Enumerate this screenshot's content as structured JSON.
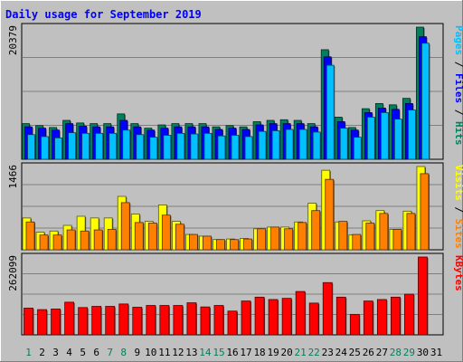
{
  "chart_data": {
    "type": "bar",
    "title": "Daily usage for September 2019",
    "categories": [
      "1",
      "2",
      "3",
      "4",
      "5",
      "6",
      "7",
      "8",
      "9",
      "10",
      "11",
      "12",
      "13",
      "14",
      "15",
      "16",
      "17",
      "18",
      "19",
      "20",
      "21",
      "22",
      "23",
      "24",
      "25",
      "26",
      "27",
      "28",
      "29",
      "30",
      "31"
    ],
    "weekend_days": [
      "1",
      "7",
      "8",
      "14",
      "15",
      "21",
      "22",
      "28",
      "29"
    ],
    "panels": [
      {
        "id": "requests",
        "ymax_label": "20379",
        "ymax": 20379,
        "legend": [
          "Pages",
          "Files",
          "Hits"
        ],
        "legend_separator": " / ",
        "series": [
          {
            "name": "Hits",
            "color": "#00805c",
            "values": [
              5500,
              5200,
              4900,
              6000,
              5600,
              5500,
              5500,
              7000,
              5500,
              4800,
              5300,
              5500,
              5500,
              5500,
              5000,
              5200,
              5000,
              5800,
              6000,
              6100,
              6000,
              5500,
              16900,
              6500,
              4900,
              7800,
              8600,
              8400,
              9400,
              20379,
              null
            ]
          },
          {
            "name": "Files",
            "color": "#0000ff",
            "values": [
              5000,
              4800,
              4500,
              5500,
              5100,
              5000,
              5000,
              6000,
              5000,
              4500,
              4800,
              5000,
              5000,
              5000,
              4600,
              4800,
              4600,
              5300,
              5500,
              5500,
              5500,
              5000,
              15800,
              5800,
              4500,
              7200,
              7900,
              7700,
              8600,
              18900,
              null
            ]
          },
          {
            "name": "Pages",
            "color": "#00c0ff",
            "values": [
              3800,
              3500,
              3300,
              4100,
              4000,
              4000,
              4000,
              4500,
              3800,
              3400,
              3700,
              4000,
              3900,
              4000,
              3600,
              3700,
              3500,
              4300,
              4400,
              4600,
              4600,
              4200,
              14500,
              4800,
              3400,
              6500,
              7200,
              6200,
              7600,
              17900,
              null
            ]
          }
        ]
      },
      {
        "id": "visits",
        "ymax_label": "1466",
        "ymax": 1466,
        "legend": [
          "Visits",
          "Sites"
        ],
        "legend_separator": " / ",
        "series": [
          {
            "name": "Visits",
            "color": "#ffff00",
            "values": [
              560,
              310,
              330,
              430,
              590,
              560,
              560,
              940,
              630,
              500,
              790,
              500,
              270,
              240,
              180,
              190,
              200,
              370,
              400,
              400,
              490,
              820,
              1400,
              490,
              260,
              510,
              690,
              360,
              680,
              1466,
              null
            ]
          },
          {
            "name": "Sites",
            "color": "#ff8000",
            "values": [
              490,
              260,
              260,
              350,
              330,
              350,
              360,
              830,
              480,
              470,
              610,
              450,
              270,
              240,
              180,
              180,
              190,
              370,
              400,
              370,
              480,
              690,
              1240,
              500,
              270,
              470,
              640,
              360,
              640,
              1340,
              null
            ]
          }
        ]
      },
      {
        "id": "kbytes",
        "ymax_label": "262099",
        "ymax": 262099,
        "legend": [
          "KBytes"
        ],
        "legend_separator": "",
        "series": [
          {
            "name": "KBytes",
            "color": "#ff0000",
            "values": [
              90000,
              85000,
              87000,
              110000,
              92000,
              96000,
              96000,
              104000,
              93000,
              99000,
              99000,
              99000,
              108000,
              94000,
              99000,
              80000,
              114000,
              127000,
              119000,
              123000,
              146000,
              107000,
              176000,
              127000,
              69000,
              114000,
              119000,
              127000,
              137000,
              262099,
              null
            ]
          }
        ]
      }
    ]
  }
}
